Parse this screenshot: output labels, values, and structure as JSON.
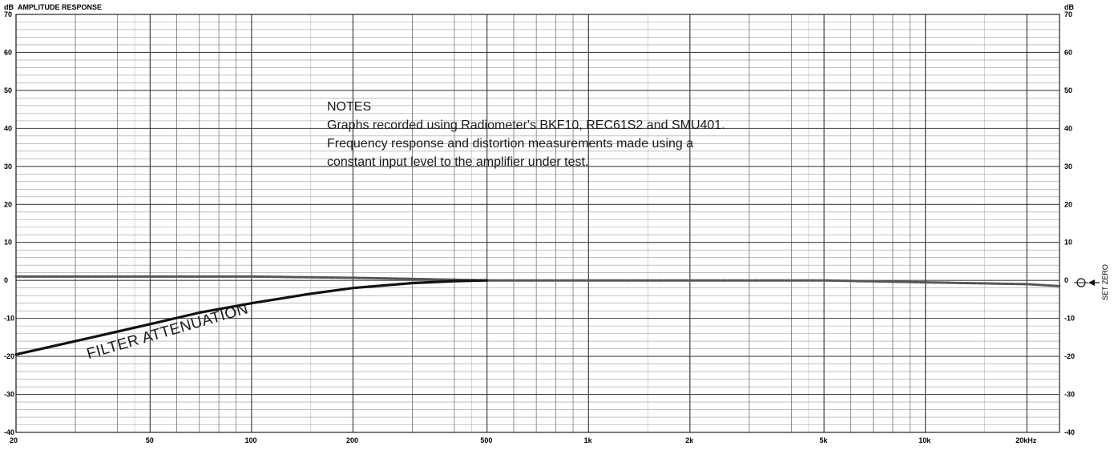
{
  "chart_data": {
    "type": "line",
    "title": "AMPLITUDE RESPONSE",
    "ylabel_left": "dB",
    "ylabel_right": "dB",
    "x_scale": "log",
    "xlim": [
      20,
      25000
    ],
    "ylim": [
      -40,
      70
    ],
    "grid": true,
    "x_tick_labels": [
      {
        "value": 20,
        "label": "20"
      },
      {
        "value": 50,
        "label": "50"
      },
      {
        "value": 100,
        "label": "100"
      },
      {
        "value": 200,
        "label": "200"
      },
      {
        "value": 500,
        "label": "500"
      },
      {
        "value": 1000,
        "label": "1k"
      },
      {
        "value": 2000,
        "label": "2k"
      },
      {
        "value": 5000,
        "label": "5k"
      },
      {
        "value": 10000,
        "label": "10k"
      },
      {
        "value": 20000,
        "label": "20kHz"
      }
    ],
    "y_tick_labels": [
      70,
      60,
      50,
      40,
      30,
      20,
      10,
      0,
      -10,
      -20,
      -30,
      -40
    ],
    "series": [
      {
        "name": "",
        "x": [
          20,
          50,
          100,
          200,
          300,
          500,
          1000,
          2000,
          5000,
          10000,
          20000,
          25000
        ],
        "y": [
          1,
          1,
          1,
          0.7,
          0.4,
          0,
          0,
          0,
          0,
          -0.5,
          -1,
          -1.5
        ]
      },
      {
        "name": "FILTER ATTENUATION",
        "x": [
          20,
          30,
          50,
          70,
          100,
          150,
          200,
          300,
          400,
          500
        ],
        "y": [
          -19.5,
          -16,
          -11.5,
          -8.5,
          -6,
          -3.5,
          -2,
          -0.7,
          -0.2,
          0
        ]
      }
    ],
    "annotations": {
      "filter_label": "FILTER ATTENUATION",
      "set_zero_label": "SET ZERO",
      "notes": [
        "NOTES",
        "Graphs recorded using Radiometer's BKF10, REC61S2 and SMU401.",
        "Frequency response and distortion measurements made using a",
        "constant input level to the amplifier under test."
      ]
    }
  }
}
